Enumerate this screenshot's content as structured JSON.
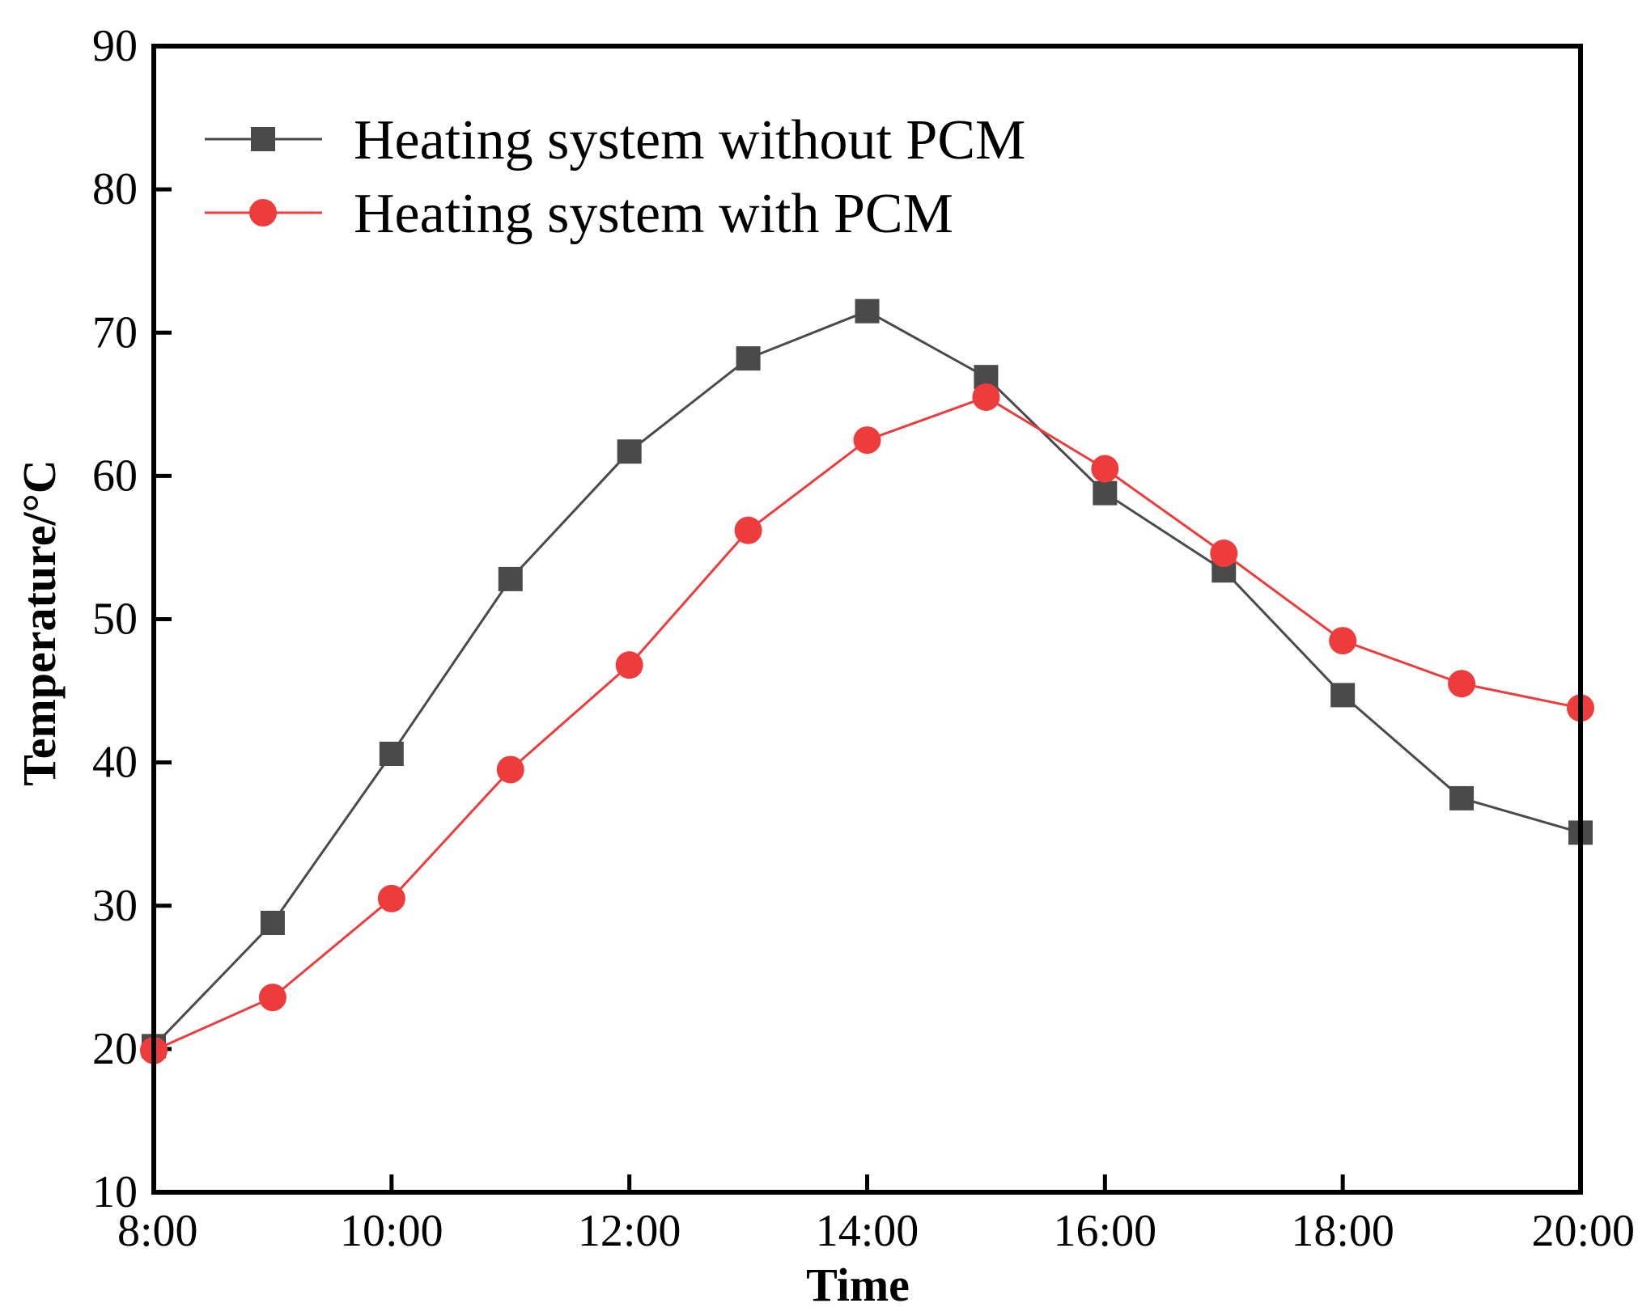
{
  "chart_data": {
    "type": "line",
    "title": "",
    "xlabel": "Time",
    "ylabel": "Temperature/°C",
    "x": [
      8,
      9,
      10,
      11,
      12,
      13,
      14,
      15,
      16,
      17,
      18,
      19,
      20
    ],
    "xlim": [
      8,
      20
    ],
    "ylim": [
      10,
      90
    ],
    "x_tick_labels": [
      "8:00",
      "10:00",
      "12:00",
      "14:00",
      "16:00",
      "18:00",
      "20:00"
    ],
    "x_tick_values": [
      8,
      10,
      12,
      14,
      16,
      18,
      20
    ],
    "y_tick_labels": [
      "10",
      "20",
      "30",
      "40",
      "50",
      "60",
      "70",
      "80",
      "90"
    ],
    "y_tick_values": [
      10,
      20,
      30,
      40,
      50,
      60,
      70,
      80,
      90
    ],
    "grid": false,
    "legend_position": "top-left",
    "series": [
      {
        "name": "Heating system without PCM",
        "color": "#4a4a4a",
        "marker": "square",
        "values": [
          20.2,
          28.8,
          40.6,
          52.8,
          61.7,
          68.2,
          71.5,
          66.9,
          58.8,
          53.4,
          44.7,
          37.5,
          35.1
        ]
      },
      {
        "name": "Heating system with PCM",
        "color": "#ee3b3b",
        "marker": "circle",
        "values": [
          19.9,
          23.6,
          30.5,
          39.5,
          46.8,
          56.2,
          62.5,
          65.5,
          60.5,
          54.6,
          48.5,
          45.5,
          43.8
        ]
      }
    ]
  }
}
